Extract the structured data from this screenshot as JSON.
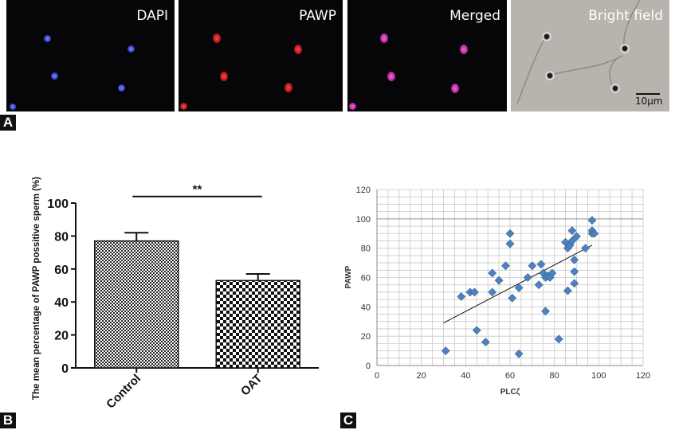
{
  "panel_a": {
    "letter": "A",
    "images": [
      {
        "label": "DAPI"
      },
      {
        "label": "PAWP"
      },
      {
        "label": "Merged"
      },
      {
        "label": "Bright field",
        "scale_bar": "10µm"
      }
    ]
  },
  "panel_b": {
    "letter": "B"
  },
  "panel_c": {
    "letter": "C"
  },
  "chart_data": [
    {
      "type": "bar",
      "categories": [
        "Control",
        "OAT"
      ],
      "values": [
        77,
        53
      ],
      "errors": [
        5,
        4
      ],
      "ylabel": "The mean percentage of PAWP possitive sperm (%)",
      "xlabel": "",
      "ylim": [
        0,
        100
      ],
      "yticks": [
        0,
        20,
        40,
        60,
        80,
        100
      ],
      "annotation": "**",
      "patterns": [
        "fine-checker",
        "coarse-checker"
      ]
    },
    {
      "type": "scatter",
      "xlabel": "PLCζ",
      "ylabel": "PAWP",
      "xlim": [
        0,
        120
      ],
      "ylim": [
        0,
        120
      ],
      "xticks": [
        0,
        20,
        40,
        60,
        80,
        100,
        120
      ],
      "yticks": [
        0,
        20,
        40,
        60,
        80,
        100,
        120
      ],
      "grid": true,
      "color": "#4f81bd",
      "trendline": {
        "x": [
          30,
          97
        ],
        "y": [
          29,
          82
        ]
      },
      "points": [
        {
          "x": 31,
          "y": 10
        },
        {
          "x": 38,
          "y": 47
        },
        {
          "x": 42,
          "y": 50
        },
        {
          "x": 44,
          "y": 50
        },
        {
          "x": 45,
          "y": 24
        },
        {
          "x": 49,
          "y": 16
        },
        {
          "x": 52,
          "y": 63
        },
        {
          "x": 52,
          "y": 50
        },
        {
          "x": 55,
          "y": 58
        },
        {
          "x": 58,
          "y": 68
        },
        {
          "x": 60,
          "y": 90
        },
        {
          "x": 60,
          "y": 83
        },
        {
          "x": 61,
          "y": 46
        },
        {
          "x": 64,
          "y": 53
        },
        {
          "x": 64,
          "y": 8
        },
        {
          "x": 68,
          "y": 60
        },
        {
          "x": 70,
          "y": 68
        },
        {
          "x": 73,
          "y": 55
        },
        {
          "x": 74,
          "y": 69
        },
        {
          "x": 75,
          "y": 63
        },
        {
          "x": 76,
          "y": 60
        },
        {
          "x": 76,
          "y": 37
        },
        {
          "x": 77,
          "y": 61
        },
        {
          "x": 78,
          "y": 60
        },
        {
          "x": 79,
          "y": 63
        },
        {
          "x": 82,
          "y": 18
        },
        {
          "x": 85,
          "y": 84
        },
        {
          "x": 86,
          "y": 80
        },
        {
          "x": 86,
          "y": 51
        },
        {
          "x": 87,
          "y": 82
        },
        {
          "x": 88,
          "y": 92
        },
        {
          "x": 88,
          "y": 85
        },
        {
          "x": 89,
          "y": 72
        },
        {
          "x": 89,
          "y": 64
        },
        {
          "x": 89,
          "y": 56
        },
        {
          "x": 90,
          "y": 88
        },
        {
          "x": 94,
          "y": 80
        },
        {
          "x": 97,
          "y": 99
        },
        {
          "x": 97,
          "y": 92
        },
        {
          "x": 97,
          "y": 90
        },
        {
          "x": 98,
          "y": 90
        }
      ]
    }
  ]
}
